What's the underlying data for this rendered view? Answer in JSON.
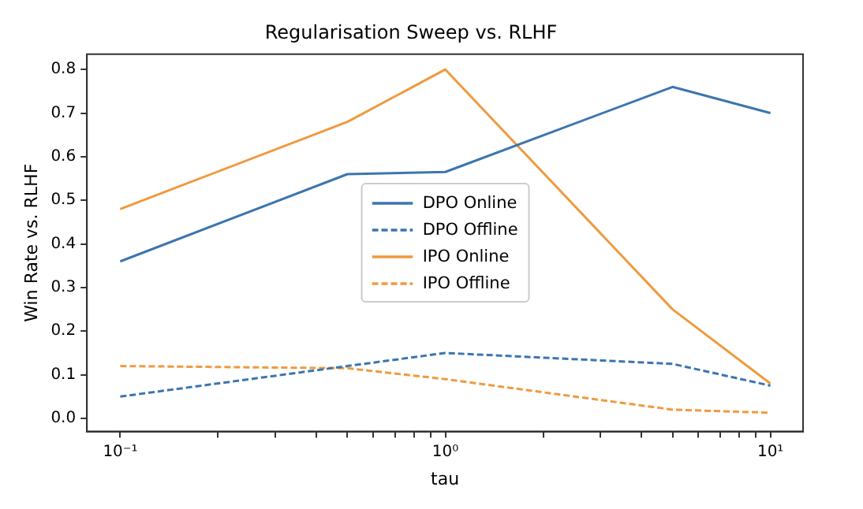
{
  "chart_data": {
    "type": "line",
    "title": "Regularisation Sweep vs. RLHF",
    "xlabel": "tau",
    "ylabel": "Win Rate vs. RLHF",
    "x": [
      0.1,
      0.5,
      1,
      5,
      10
    ],
    "series": [
      {
        "name": "DPO Online",
        "color": "#3b75af",
        "line_style": "solid",
        "values": [
          0.36,
          0.56,
          0.565,
          0.76,
          0.7
        ]
      },
      {
        "name": "DPO Offline",
        "color": "#3b75af",
        "line_style": "dashed",
        "values": [
          0.05,
          0.12,
          0.15,
          0.125,
          0.075
        ]
      },
      {
        "name": "IPO Online",
        "color": "#ef9a3f",
        "line_style": "solid",
        "values": [
          0.48,
          0.68,
          0.8,
          0.25,
          0.08
        ]
      },
      {
        "name": "IPO Offline",
        "color": "#ef9a3f",
        "line_style": "dashed",
        "values": [
          0.12,
          0.115,
          0.09,
          0.02,
          0.013
        ]
      }
    ],
    "log": "x",
    "xlim": [
      0.079,
      12.6
    ],
    "xticks": [
      {
        "value": 0.1,
        "label": "10⁻¹"
      },
      {
        "value": 0.2,
        "label": null
      },
      {
        "value": 0.3,
        "label": null
      },
      {
        "value": 0.4,
        "label": null
      },
      {
        "value": 0.5,
        "label": null
      },
      {
        "value": 0.6,
        "label": null
      },
      {
        "value": 0.7,
        "label": null
      },
      {
        "value": 0.8,
        "label": null
      },
      {
        "value": 0.9,
        "label": null
      },
      {
        "value": 1,
        "label": "10⁰"
      },
      {
        "value": 2,
        "label": null
      },
      {
        "value": 3,
        "label": null
      },
      {
        "value": 4,
        "label": null
      },
      {
        "value": 5,
        "label": null
      },
      {
        "value": 6,
        "label": null
      },
      {
        "value": 7,
        "label": null
      },
      {
        "value": 8,
        "label": null
      },
      {
        "value": 9,
        "label": null
      },
      {
        "value": 10,
        "label": "10¹"
      }
    ],
    "ylim": [
      -0.03,
      0.835
    ],
    "yticks": [
      {
        "value": 0,
        "label": "0.0"
      },
      0.1,
      0.2,
      0.3,
      0.4,
      0.5,
      0.6,
      0.7,
      0.8
    ],
    "grid": false,
    "legend": "center",
    "marker": "none"
  }
}
